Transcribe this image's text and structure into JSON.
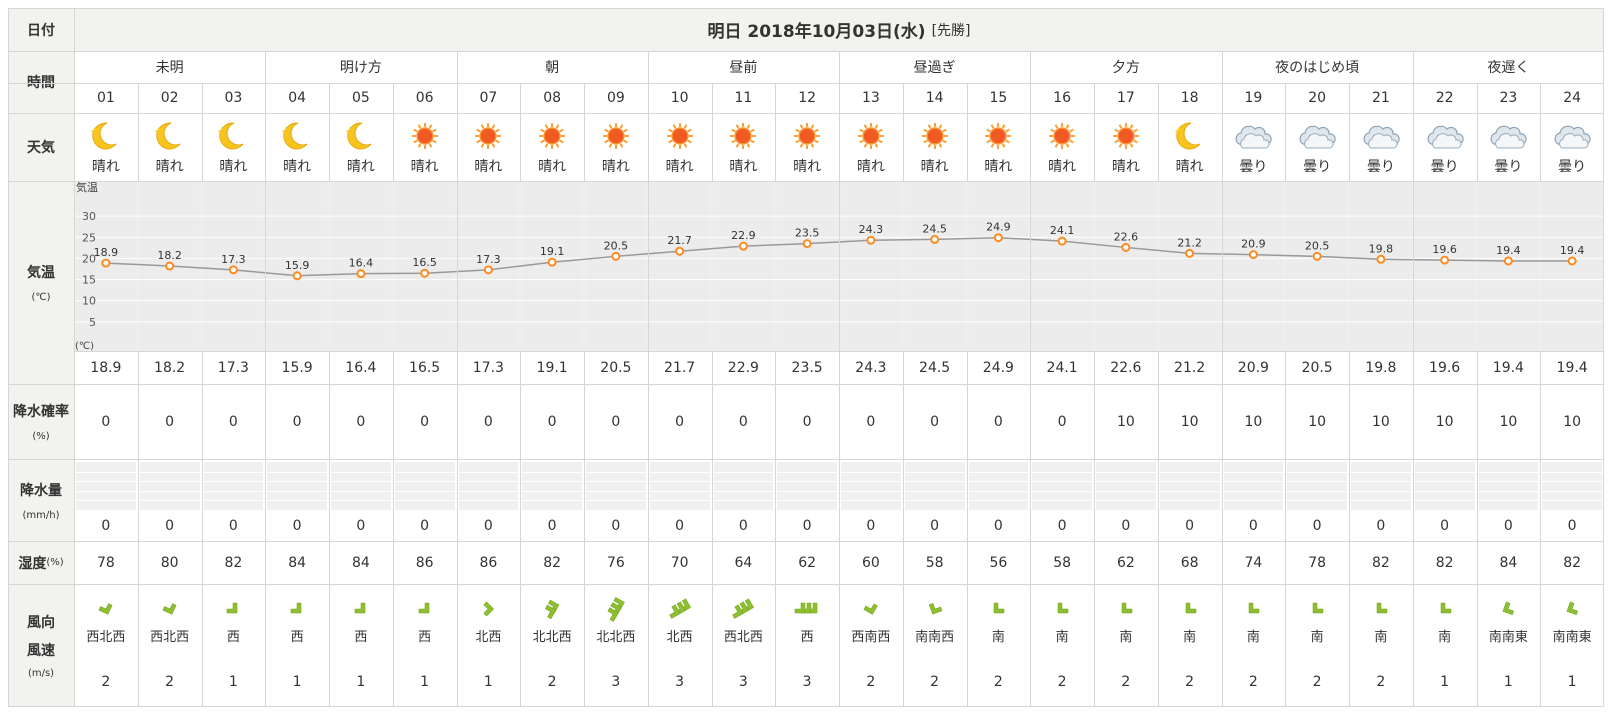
{
  "labels": {
    "date": "日付",
    "time": "時間",
    "weather": "天気",
    "temp": "気温",
    "temp_unit": "(℃)",
    "pop": "降水確率",
    "pop_unit": "(%)",
    "precip": "降水量",
    "precip_unit": "(mm/h)",
    "humidity": "湿度",
    "humidity_unit": "(%)",
    "wind_dir": "風向",
    "wind_speed": "風速",
    "wind_unit": "(m/s)",
    "chart_axis_label": "気温",
    "chart_axis_unit": "(℃)"
  },
  "header": {
    "title": "明日 2018年10月03日(水)",
    "rokuyo": "[先勝]"
  },
  "periods": [
    {
      "label": "未明",
      "span": 3
    },
    {
      "label": "明け方",
      "span": 3
    },
    {
      "label": "朝",
      "span": 3
    },
    {
      "label": "昼前",
      "span": 3
    },
    {
      "label": "昼過ぎ",
      "span": 3
    },
    {
      "label": "夕方",
      "span": 3
    },
    {
      "label": "夜のはじめ頃",
      "span": 3
    },
    {
      "label": "夜遅く",
      "span": 3
    }
  ],
  "hours": [
    "01",
    "02",
    "03",
    "04",
    "05",
    "06",
    "07",
    "08",
    "09",
    "10",
    "11",
    "12",
    "13",
    "14",
    "15",
    "16",
    "17",
    "18",
    "19",
    "20",
    "21",
    "22",
    "23",
    "24"
  ],
  "weather": [
    {
      "icon": "moon",
      "text": "晴れ"
    },
    {
      "icon": "moon",
      "text": "晴れ"
    },
    {
      "icon": "moon",
      "text": "晴れ"
    },
    {
      "icon": "moon",
      "text": "晴れ"
    },
    {
      "icon": "moon",
      "text": "晴れ"
    },
    {
      "icon": "sun",
      "text": "晴れ"
    },
    {
      "icon": "sun",
      "text": "晴れ"
    },
    {
      "icon": "sun",
      "text": "晴れ"
    },
    {
      "icon": "sun",
      "text": "晴れ"
    },
    {
      "icon": "sun",
      "text": "晴れ"
    },
    {
      "icon": "sun",
      "text": "晴れ"
    },
    {
      "icon": "sun",
      "text": "晴れ"
    },
    {
      "icon": "sun",
      "text": "晴れ"
    },
    {
      "icon": "sun",
      "text": "晴れ"
    },
    {
      "icon": "sun",
      "text": "晴れ"
    },
    {
      "icon": "sun",
      "text": "晴れ"
    },
    {
      "icon": "sun",
      "text": "晴れ"
    },
    {
      "icon": "moon",
      "text": "晴れ"
    },
    {
      "icon": "cloud",
      "text": "曇り"
    },
    {
      "icon": "cloud",
      "text": "曇り"
    },
    {
      "icon": "cloud",
      "text": "曇り"
    },
    {
      "icon": "cloud",
      "text": "曇り"
    },
    {
      "icon": "cloud",
      "text": "曇り"
    },
    {
      "icon": "cloud",
      "text": "曇り"
    }
  ],
  "chart_data": {
    "type": "line",
    "x": [
      "01",
      "02",
      "03",
      "04",
      "05",
      "06",
      "07",
      "08",
      "09",
      "10",
      "11",
      "12",
      "13",
      "14",
      "15",
      "16",
      "17",
      "18",
      "19",
      "20",
      "21",
      "22",
      "23",
      "24"
    ],
    "series": [
      {
        "values": [
          18.9,
          18.2,
          17.3,
          15.9,
          16.4,
          16.5,
          17.3,
          19.1,
          20.5,
          21.7,
          22.9,
          23.5,
          24.3,
          24.5,
          24.9,
          24.1,
          22.6,
          21.2,
          20.9,
          20.5,
          19.8,
          19.6,
          19.4,
          19.4
        ]
      }
    ],
    "ylabel": "気温 (℃)",
    "ylim": [
      0,
      35
    ],
    "yticks": [
      5,
      10,
      15,
      20,
      25,
      30
    ],
    "grid": true
  },
  "temperature": [
    "18.9",
    "18.2",
    "17.3",
    "15.9",
    "16.4",
    "16.5",
    "17.3",
    "19.1",
    "20.5",
    "21.7",
    "22.9",
    "23.5",
    "24.3",
    "24.5",
    "24.9",
    "24.1",
    "22.6",
    "21.2",
    "20.9",
    "20.5",
    "19.8",
    "19.6",
    "19.4",
    "19.4"
  ],
  "pop": [
    "0",
    "0",
    "0",
    "0",
    "0",
    "0",
    "0",
    "0",
    "0",
    "0",
    "0",
    "0",
    "0",
    "0",
    "0",
    "0",
    "10",
    "10",
    "10",
    "10",
    "10",
    "10",
    "10",
    "10"
  ],
  "precip": [
    "0",
    "0",
    "0",
    "0",
    "0",
    "0",
    "0",
    "0",
    "0",
    "0",
    "0",
    "0",
    "0",
    "0",
    "0",
    "0",
    "0",
    "0",
    "0",
    "0",
    "0",
    "0",
    "0",
    "0"
  ],
  "humidity": [
    "78",
    "80",
    "82",
    "84",
    "84",
    "86",
    "86",
    "82",
    "76",
    "70",
    "64",
    "62",
    "60",
    "58",
    "56",
    "58",
    "62",
    "68",
    "74",
    "78",
    "82",
    "82",
    "84",
    "82"
  ],
  "wind_dir_angle": [
    115,
    115,
    90,
    90,
    90,
    90,
    45,
    30,
    30,
    60,
    60,
    90,
    120,
    160,
    180,
    180,
    180,
    180,
    180,
    180,
    180,
    180,
    200,
    200
  ],
  "wind_strength": [
    1,
    1,
    1,
    1,
    1,
    1,
    1,
    2,
    3,
    3,
    3,
    3,
    1,
    1,
    1,
    1,
    1,
    1,
    1,
    1,
    1,
    1,
    1,
    1
  ],
  "wind_dir": [
    "西北西",
    "西北西",
    "西",
    "西",
    "西",
    "西",
    "北西",
    "北北西",
    "北北西",
    "北西",
    "西北西",
    "西",
    "西南西",
    "南南西",
    "南",
    "南",
    "南",
    "南",
    "南",
    "南",
    "南",
    "南",
    "南南東",
    "南南東"
  ],
  "wind_speed": [
    "2",
    "2",
    "1",
    "1",
    "1",
    "1",
    "1",
    "2",
    "3",
    "3",
    "3",
    "3",
    "2",
    "2",
    "2",
    "2",
    "2",
    "2",
    "2",
    "2",
    "2",
    "1",
    "1",
    "1"
  ],
  "colors": {
    "header_bg": "#f2f2ee",
    "chart_bg": "#eeeeee",
    "line": "#999999",
    "marker": "#ff8a1f",
    "arrow": "#8dbf2f"
  }
}
